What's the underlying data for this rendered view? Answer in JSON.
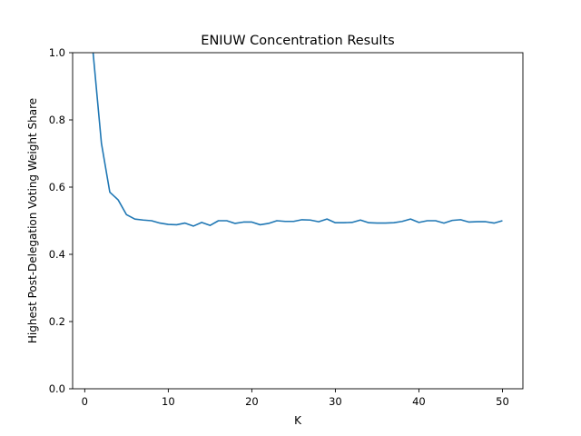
{
  "chart_data": {
    "type": "line",
    "title": "ENIUW Concentration Results",
    "xlabel": "K",
    "ylabel": "Highest Post-Delegation Voting Weight Share",
    "xlim": [
      -1.45,
      52.45
    ],
    "ylim": [
      0.0,
      1.0
    ],
    "xticks": [
      0,
      10,
      20,
      30,
      40,
      50
    ],
    "yticks": [
      0.0,
      0.2,
      0.4,
      0.6,
      0.8,
      1.0
    ],
    "xtick_labels": [
      "0",
      "10",
      "20",
      "30",
      "40",
      "50"
    ],
    "ytick_labels": [
      "0.0",
      "0.2",
      "0.4",
      "0.6",
      "0.8",
      "1.0"
    ],
    "grid": false,
    "line_color": "#1f77b4",
    "series": [
      {
        "x": [
          1,
          2,
          3,
          4,
          5,
          6,
          7,
          8,
          9,
          10,
          11,
          12,
          13,
          14,
          15,
          16,
          17,
          18,
          19,
          20,
          21,
          22,
          23,
          24,
          25,
          26,
          27,
          28,
          29,
          30,
          31,
          32,
          33,
          34,
          35,
          36,
          37,
          38,
          39,
          40,
          41,
          42,
          43,
          44,
          45,
          46,
          47,
          48,
          49,
          50
        ],
        "values": [
          1.0,
          0.73,
          0.585,
          0.562,
          0.518,
          0.505,
          0.502,
          0.5,
          0.493,
          0.489,
          0.488,
          0.493,
          0.484,
          0.495,
          0.486,
          0.5,
          0.5,
          0.492,
          0.496,
          0.496,
          0.488,
          0.492,
          0.5,
          0.498,
          0.498,
          0.503,
          0.502,
          0.497,
          0.505,
          0.494,
          0.494,
          0.495,
          0.502,
          0.494,
          0.493,
          0.493,
          0.494,
          0.498,
          0.505,
          0.495,
          0.5,
          0.5,
          0.493,
          0.501,
          0.503,
          0.496,
          0.497,
          0.497,
          0.493,
          0.5
        ]
      }
    ]
  }
}
